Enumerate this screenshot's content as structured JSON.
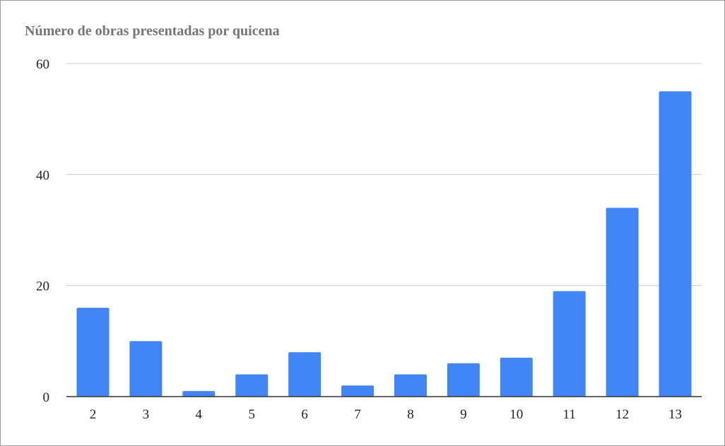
{
  "chart_data": {
    "type": "bar",
    "title": "Número de obras presentadas por quicena",
    "xlabel": "",
    "ylabel": "",
    "categories": [
      "2",
      "3",
      "4",
      "5",
      "6",
      "7",
      "8",
      "9",
      "10",
      "11",
      "12",
      "13"
    ],
    "values": [
      16,
      10,
      1,
      4,
      8,
      2,
      4,
      6,
      7,
      19,
      34,
      55
    ],
    "ylim": [
      0,
      60
    ],
    "yticks": [
      "0",
      "20",
      "40",
      "60"
    ],
    "grid": true,
    "legend": "none",
    "colors": {
      "bar": "#4285f4",
      "grid": "#cccccc",
      "axis": "#333333",
      "title": "#757575"
    }
  }
}
